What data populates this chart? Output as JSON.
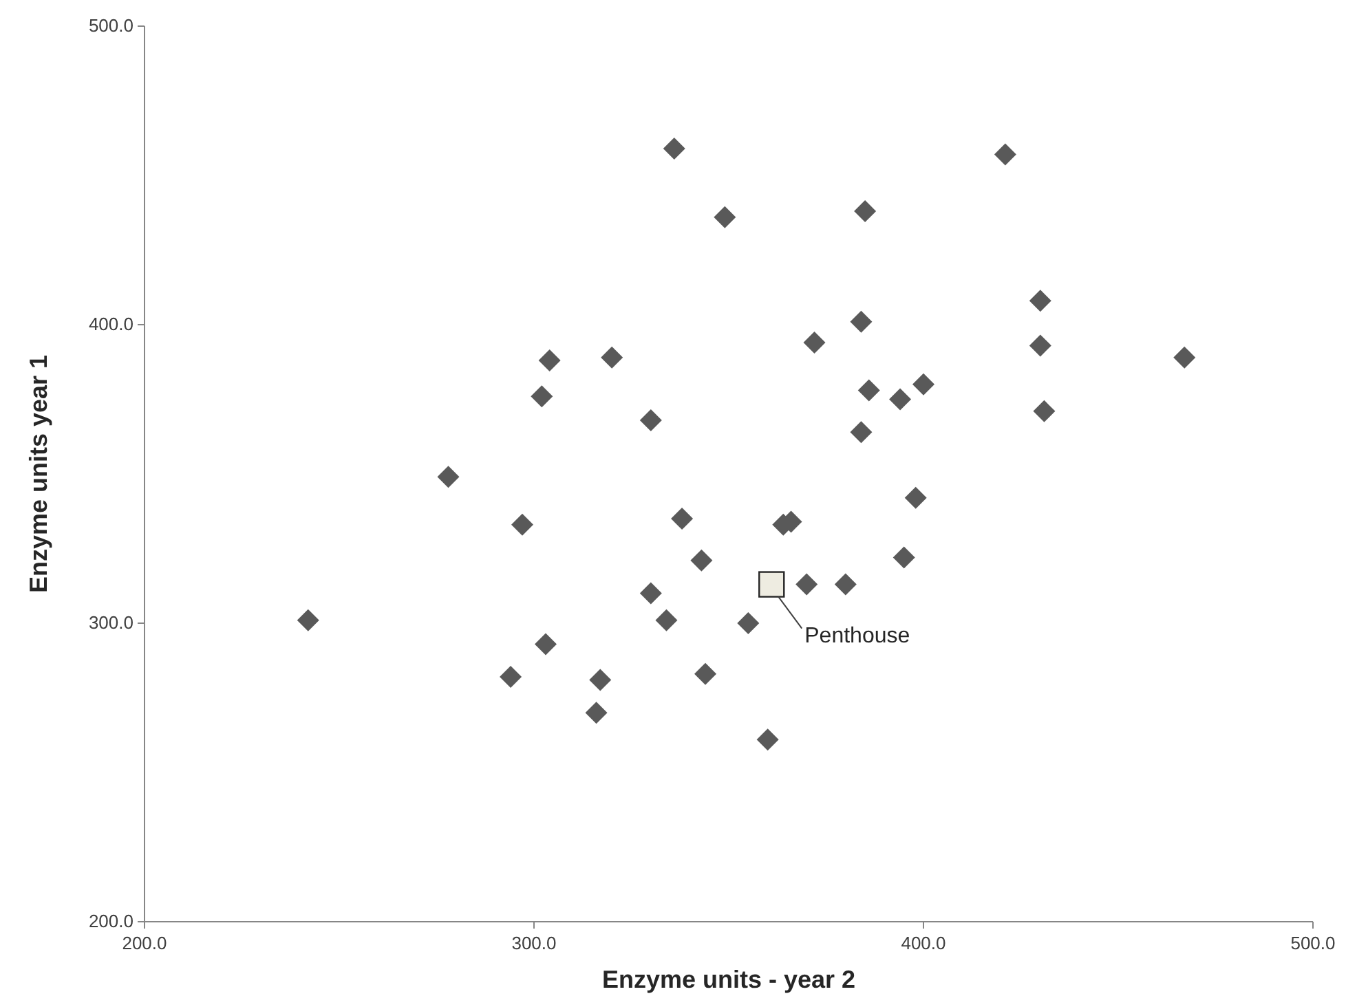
{
  "chart_data": {
    "type": "scatter",
    "xlabel": "Enzyme units - year 2",
    "ylabel": "Enzyme units year 1",
    "xlim": [
      200,
      500
    ],
    "ylim": [
      200,
      500
    ],
    "xticks": [
      {
        "value": 200,
        "label": "200.0"
      },
      {
        "value": 300,
        "label": "300.0"
      },
      {
        "value": 400,
        "label": "400.0"
      },
      {
        "value": 500,
        "label": "500.0"
      }
    ],
    "yticks": [
      {
        "value": 200,
        "label": "200.0"
      },
      {
        "value": 300,
        "label": "300.0"
      },
      {
        "value": 400,
        "label": "400.0"
      },
      {
        "value": 500,
        "label": "500.0"
      }
    ],
    "grid": false,
    "series": [
      {
        "color": "#595959",
        "marker": "diamond",
        "x": [
          242,
          278,
          302,
          304,
          320,
          297,
          294,
          303,
          317,
          316,
          330,
          334,
          330,
          338,
          343,
          344,
          336,
          349,
          355,
          360,
          364,
          366,
          370,
          372,
          380,
          384,
          384,
          385,
          386,
          394,
          395,
          398,
          400,
          421,
          430,
          430,
          431,
          467
        ],
        "values": [
          301,
          349,
          376,
          388,
          389,
          333,
          282,
          293,
          281,
          270,
          310,
          301,
          368,
          335,
          321,
          283,
          459,
          436,
          300,
          261,
          333,
          334,
          313,
          394,
          313,
          401,
          364,
          438,
          378,
          375,
          322,
          342,
          380,
          457,
          408,
          393,
          371,
          389
        ]
      },
      {
        "color": "#eeece1",
        "marker": "square",
        "x": [
          361
        ],
        "values": [
          313
        ]
      }
    ],
    "annotations": [
      {
        "text": "Penthouse",
        "x": 361,
        "y": 313
      }
    ]
  }
}
